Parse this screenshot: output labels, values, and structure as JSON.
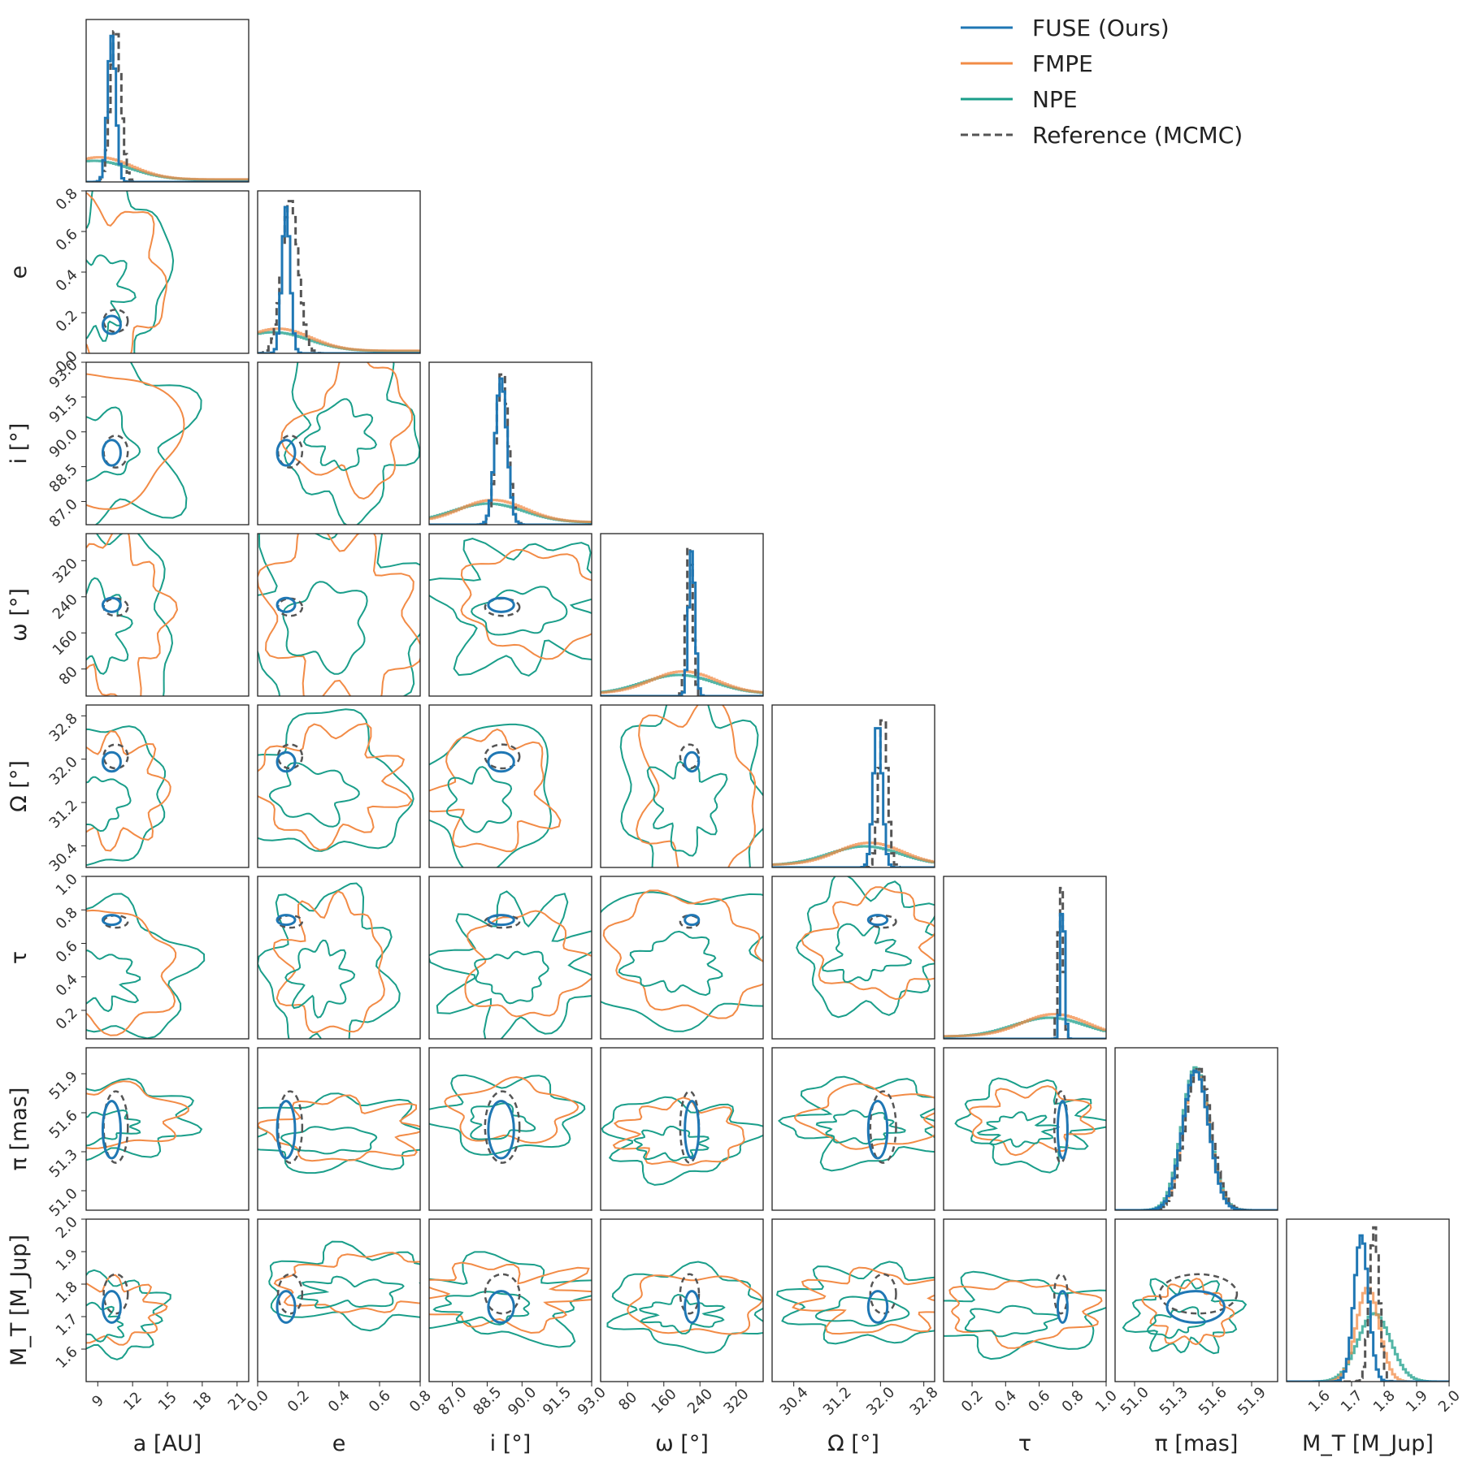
{
  "chart_data": {
    "type": "corner",
    "params": [
      {
        "key": "a",
        "label": "a [AU]",
        "lim": [
          8,
          22
        ],
        "ticks": [
          "9",
          "12",
          "15",
          "18",
          "21"
        ],
        "tick_values": [
          9,
          12,
          15,
          18,
          21
        ],
        "mode": 10.2,
        "sigma": 0.35,
        "ref_mode": 10.55,
        "ref_sigma": 0.45
      },
      {
        "key": "e",
        "label": "e",
        "lim": [
          0,
          0.8
        ],
        "ticks": [
          "0.0",
          "0.2",
          "0.4",
          "0.6",
          "0.8"
        ],
        "tick_values": [
          0.0,
          0.2,
          0.4,
          0.6,
          0.8
        ],
        "mode": 0.14,
        "sigma": 0.02,
        "ref_mode": 0.16,
        "ref_sigma": 0.04
      },
      {
        "key": "i",
        "label": "i [°]",
        "lim": [
          86,
          93
        ],
        "ticks": [
          "87.0",
          "88.5",
          "90.0",
          "91.5",
          "93.0"
        ],
        "tick_values": [
          87.0,
          88.5,
          90.0,
          91.5,
          93.0
        ],
        "mode": 89.1,
        "sigma": 0.25,
        "ref_mode": 89.15,
        "ref_sigma": 0.25
      },
      {
        "key": "omega",
        "label": "ω [°]",
        "lim": [
          20,
          380
        ],
        "ticks": [
          "80",
          "160",
          "240",
          "320"
        ],
        "tick_values": [
          80,
          160,
          240,
          320
        ],
        "mode": 222,
        "sigma": 7,
        "ref_mode": 217,
        "ref_sigma": 7
      },
      {
        "key": "Omega",
        "label": "Ω [°]",
        "lim": [
          30.0,
          33.0
        ],
        "ticks": [
          "30.4",
          "31.2",
          "32.0",
          "32.8"
        ],
        "tick_values": [
          30.4,
          31.2,
          32.0,
          32.8
        ],
        "mode": 31.95,
        "sigma": 0.08,
        "ref_mode": 32.05,
        "ref_sigma": 0.08
      },
      {
        "key": "tau",
        "label": "τ",
        "lim": [
          0.03,
          1.0
        ],
        "ticks": [
          "0.2",
          "0.4",
          "0.6",
          "0.8",
          "1.0"
        ],
        "tick_values": [
          0.2,
          0.4,
          0.6,
          0.8,
          1.0
        ],
        "mode": 0.74,
        "sigma": 0.012,
        "ref_mode": 0.73,
        "ref_sigma": 0.015
      },
      {
        "key": "pi",
        "label": "π [mas]",
        "lim": [
          50.85,
          52.1
        ],
        "ticks": [
          "51.0",
          "51.3",
          "51.6",
          "51.9"
        ],
        "tick_values": [
          51.0,
          51.3,
          51.6,
          51.9
        ],
        "mode": 51.47,
        "sigma": 0.1,
        "ref_mode": 51.49,
        "ref_sigma": 0.1
      },
      {
        "key": "M",
        "label": "M_T [M_Jup]",
        "lim": [
          1.5,
          2.0
        ],
        "ticks": [
          "1.6",
          "1.7",
          "1.8",
          "1.9",
          "2.0"
        ],
        "tick_values": [
          1.6,
          1.7,
          1.8,
          1.9,
          2.0
        ],
        "mode": 1.73,
        "sigma": 0.022,
        "ref_mode": 1.77,
        "ref_sigma": 0.015
      }
    ],
    "legend": {
      "placement": "top-right",
      "entries": [
        {
          "label": "FUSE (Ours)",
          "color": "#1f77b4",
          "style": "solid"
        },
        {
          "label": "FMPE",
          "color": "#f28b46",
          "style": "solid"
        },
        {
          "label": "NPE",
          "color": "#1a9e8a",
          "style": "solid"
        },
        {
          "label": "Reference (MCMC)",
          "color": "#555555",
          "style": "dashed"
        }
      ]
    },
    "colors": {
      "fuse": "#1f77b4",
      "fmpe": "#f28b46",
      "npe": "#1a9e8a",
      "ref": "#555555"
    }
  }
}
